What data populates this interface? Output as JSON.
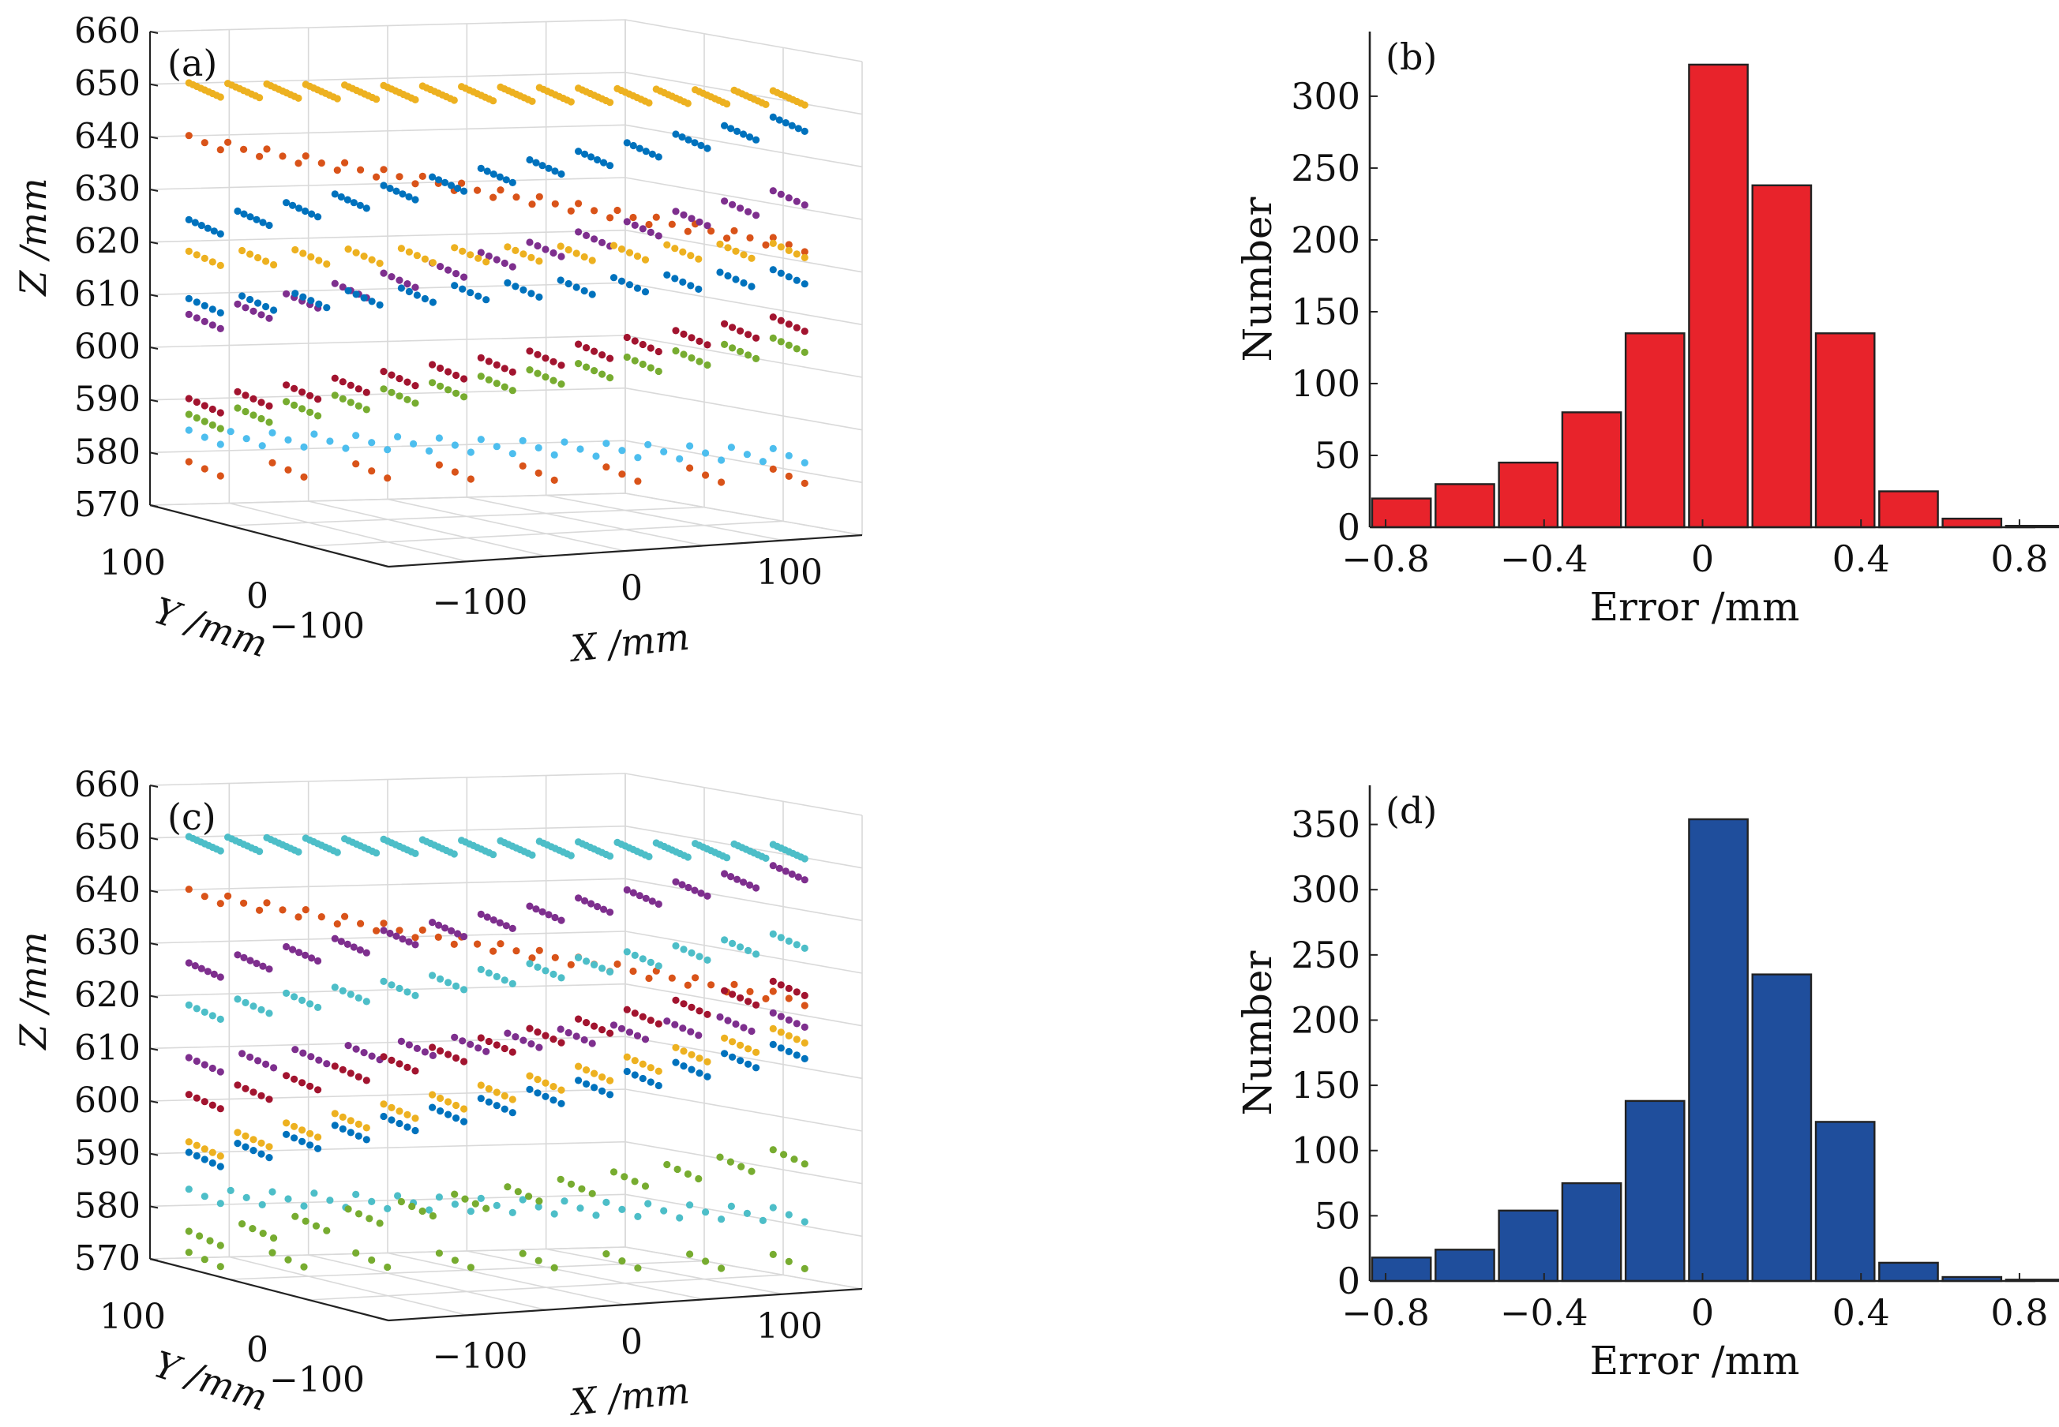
{
  "chart_data": [
    {
      "panel": "(a)",
      "type": "scatter3d",
      "zlabel": "Z /mm",
      "ylabel": "Y /mm",
      "xlabel": "X /mm",
      "zlim": [
        570,
        660
      ],
      "z_ticks": [
        "570",
        "580",
        "590",
        "600",
        "610",
        "620",
        "630",
        "640",
        "650",
        "660"
      ],
      "y_ticks": [
        "100",
        "0",
        "−100"
      ],
      "x_ticks": [
        "−100",
        "0",
        "100"
      ],
      "planes": [
        {
          "name": "plane-1",
          "color": "#EDB120",
          "z_left": 652,
          "z_right": 646,
          "cols": 16,
          "rows": 9,
          "slope": 1
        },
        {
          "name": "plane-2",
          "color": "#D95319",
          "z_left": 642,
          "z_right": 619,
          "cols": 16,
          "rows": 3,
          "slope": -1
        },
        {
          "name": "plane-3",
          "color": "#0072BD",
          "z_left": 626,
          "z_right": 641,
          "cols": 13,
          "rows": 6,
          "slope": 1
        },
        {
          "name": "plane-4",
          "color": "#7E2F8E",
          "z_left": 608,
          "z_right": 627,
          "cols": 13,
          "rows": 5,
          "slope": 1
        },
        {
          "name": "plane-5",
          "color": "#EDB120",
          "z_left": 620,
          "z_right": 617,
          "cols": 12,
          "rows": 5,
          "slope": 1
        },
        {
          "name": "plane-6",
          "color": "#0072BD",
          "z_left": 611,
          "z_right": 612,
          "cols": 12,
          "rows": 5,
          "slope": 1
        },
        {
          "name": "plane-7",
          "color": "#A2142F",
          "z_left": 592,
          "z_right": 603,
          "cols": 13,
          "rows": 5,
          "slope": 1
        },
        {
          "name": "plane-8",
          "color": "#77AC30",
          "z_left": 589,
          "z_right": 599,
          "cols": 13,
          "rows": 5,
          "slope": 1
        },
        {
          "name": "plane-9",
          "color": "#4DBEEE",
          "z_left": 586,
          "z_right": 578,
          "cols": 15,
          "rows": 3,
          "slope": 1
        },
        {
          "name": "plane-10",
          "color": "#D95319",
          "z_left": 580,
          "z_right": 575,
          "cols": 8,
          "rows": 3,
          "slope": -1
        }
      ]
    },
    {
      "panel": "(b)",
      "type": "bar",
      "xlabel": "Error /mm",
      "ylabel": "Number",
      "xlim": [
        -0.84,
        0.84
      ],
      "ylim": [
        0,
        345
      ],
      "x_ticks": [
        "−0.8",
        "−0.4",
        "0",
        "0.4",
        "0.8"
      ],
      "y_ticks": [
        "0",
        "50",
        "100",
        "150",
        "200",
        "250",
        "300"
      ],
      "bar_color": "#E8232B",
      "bin_centers": [
        -0.76,
        -0.6,
        -0.44,
        -0.28,
        -0.12,
        0.04,
        0.2,
        0.36,
        0.52,
        0.68,
        0.84
      ],
      "values": [
        20,
        30,
        45,
        80,
        135,
        322,
        238,
        135,
        25,
        6,
        1
      ]
    },
    {
      "panel": "(c)",
      "type": "scatter3d",
      "zlabel": "Z /mm",
      "ylabel": "Y /mm",
      "xlabel": "X /mm",
      "zlim": [
        570,
        660
      ],
      "z_ticks": [
        "570",
        "580",
        "590",
        "600",
        "610",
        "620",
        "630",
        "640",
        "650",
        "660"
      ],
      "y_ticks": [
        "100",
        "0",
        "−100"
      ],
      "x_ticks": [
        "−100",
        "0",
        "100"
      ],
      "planes": [
        {
          "name": "plane-1",
          "color": "#4DBEC8",
          "z_left": 652,
          "z_right": 646,
          "cols": 16,
          "rows": 9,
          "slope": 1
        },
        {
          "name": "plane-2",
          "color": "#D95319",
          "z_left": 642,
          "z_right": 619,
          "cols": 16,
          "rows": 3,
          "slope": -1
        },
        {
          "name": "plane-3",
          "color": "#7E2F8E",
          "z_left": 628,
          "z_right": 642,
          "cols": 13,
          "rows": 6,
          "slope": 1
        },
        {
          "name": "plane-4",
          "color": "#4DBEC8",
          "z_left": 620,
          "z_right": 629,
          "cols": 13,
          "rows": 5,
          "slope": 1
        },
        {
          "name": "plane-5",
          "color": "#7E2F8E",
          "z_left": 610,
          "z_right": 614,
          "cols": 12,
          "rows": 5,
          "slope": 1
        },
        {
          "name": "plane-6",
          "color": "#A2142F",
          "z_left": 603,
          "z_right": 620,
          "cols": 13,
          "rows": 5,
          "slope": 1
        },
        {
          "name": "plane-7",
          "color": "#EDB120",
          "z_left": 594,
          "z_right": 611,
          "cols": 13,
          "rows": 5,
          "slope": 1
        },
        {
          "name": "plane-8",
          "color": "#0072BD",
          "z_left": 592,
          "z_right": 608,
          "cols": 13,
          "rows": 5,
          "slope": 1
        },
        {
          "name": "plane-9",
          "color": "#4DBEC8",
          "z_left": 585,
          "z_right": 577,
          "cols": 15,
          "rows": 3,
          "slope": 1
        },
        {
          "name": "plane-10",
          "color": "#77AC30",
          "z_left": 577,
          "z_right": 588,
          "cols": 12,
          "rows": 4,
          "slope": 1
        },
        {
          "name": "plane-11",
          "color": "#77AC30",
          "z_left": 573,
          "z_right": 569,
          "cols": 8,
          "rows": 3,
          "slope": -1
        }
      ]
    },
    {
      "panel": "(d)",
      "type": "bar",
      "xlabel": "Error /mm",
      "ylabel": "Number",
      "xlim": [
        -0.84,
        0.84
      ],
      "ylim": [
        0,
        380
      ],
      "x_ticks": [
        "−0.8",
        "−0.4",
        "0",
        "0.4",
        "0.8"
      ],
      "y_ticks": [
        "0",
        "50",
        "100",
        "150",
        "200",
        "250",
        "300",
        "350"
      ],
      "bar_color": "#1F4E9C",
      "bin_centers": [
        -0.76,
        -0.6,
        -0.44,
        -0.28,
        -0.12,
        0.04,
        0.2,
        0.36,
        0.52,
        0.68,
        0.84
      ],
      "values": [
        18,
        24,
        54,
        75,
        138,
        354,
        235,
        122,
        14,
        3,
        1
      ]
    }
  ]
}
